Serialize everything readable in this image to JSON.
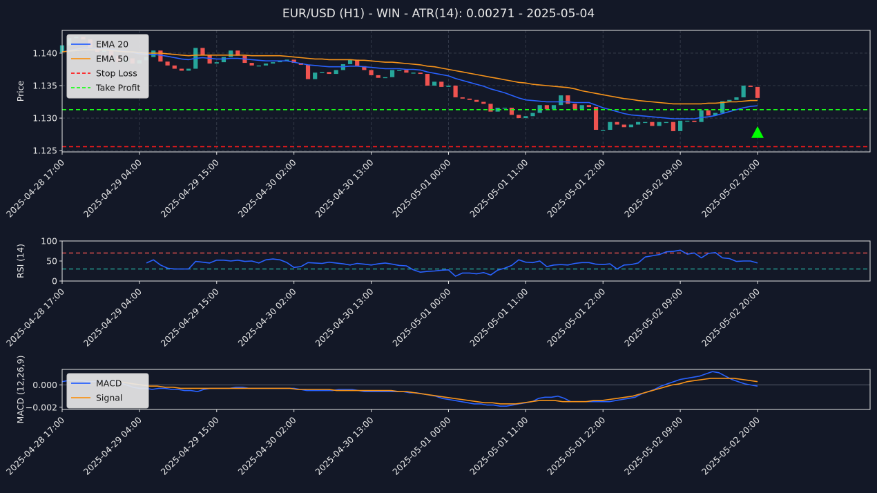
{
  "title": "EUR/USD (H1) - WIN - ATR(14): 0.00271 - 2025-05-04",
  "colors": {
    "background": "#131827",
    "axes_border": "#e6e6e6",
    "text": "#e6e6e6",
    "grid": "#3b4150",
    "bull": "#26a69a",
    "bear": "#ef5350",
    "ema20": "#2962ff",
    "ema50": "#f7931a",
    "stop_loss": "#ff1a1a",
    "take_profit": "#1aff1a",
    "rsi_line": "#2962ff",
    "rsi_upper": "#ef5350",
    "rsi_lower": "#26a69a",
    "macd": "#2962ff",
    "signal": "#f7931a",
    "marker": "#00ff00"
  },
  "x_ticks": [
    {
      "label": "2025-04-28 17:00",
      "i": 0
    },
    {
      "label": "2025-04-29 04:00",
      "i": 11
    },
    {
      "label": "2025-04-29 15:00",
      "i": 22
    },
    {
      "label": "2025-04-30 02:00",
      "i": 33
    },
    {
      "label": "2025-04-30 13:00",
      "i": 44
    },
    {
      "label": "2025-05-01 00:00",
      "i": 55
    },
    {
      "label": "2025-05-01 11:00",
      "i": 66
    },
    {
      "label": "2025-05-01 22:00",
      "i": 77
    },
    {
      "label": "2025-05-02 09:00",
      "i": 88
    },
    {
      "label": "2025-05-02 20:00",
      "i": 99
    }
  ],
  "chart_data": [
    {
      "type": "candlestick",
      "ylabel": "Price",
      "ylim": [
        1.1248,
        1.1435
      ],
      "y_ticks": [
        "1.125",
        "1.130",
        "1.135",
        "1.140"
      ],
      "x_range_index": [
        0,
        115
      ],
      "candles": [
        [
          1.1401,
          1.1412
        ],
        [
          1.1412,
          1.1423
        ],
        [
          1.1423,
          1.1425
        ],
        [
          1.1425,
          1.1421
        ],
        [
          1.1421,
          1.1409
        ],
        [
          1.1409,
          1.1402
        ],
        [
          1.1402,
          1.1405
        ],
        [
          1.1405,
          1.1396
        ],
        [
          1.1396,
          1.1386
        ],
        [
          1.1386,
          1.1392
        ],
        [
          1.1392,
          1.1384
        ],
        [
          1.1384,
          1.1389
        ],
        [
          1.1389,
          1.1394
        ],
        [
          1.1394,
          1.1404
        ],
        [
          1.1404,
          1.1387
        ],
        [
          1.1387,
          1.1381
        ],
        [
          1.1381,
          1.1376
        ],
        [
          1.1376,
          1.1373
        ],
        [
          1.1373,
          1.1376
        ],
        [
          1.1376,
          1.1408
        ],
        [
          1.1408,
          1.1397
        ],
        [
          1.1397,
          1.1384
        ],
        [
          1.1384,
          1.1386
        ],
        [
          1.1386,
          1.1394
        ],
        [
          1.1394,
          1.1404
        ],
        [
          1.1404,
          1.1396
        ],
        [
          1.1396,
          1.1385
        ],
        [
          1.1385,
          1.1381
        ],
        [
          1.1381,
          1.1381
        ],
        [
          1.1381,
          1.1384
        ],
        [
          1.1384,
          1.1386
        ],
        [
          1.1386,
          1.1388
        ],
        [
          1.1388,
          1.139
        ],
        [
          1.139,
          1.1385
        ],
        [
          1.1385,
          1.1382
        ],
        [
          1.1382,
          1.136
        ],
        [
          1.136,
          1.137
        ],
        [
          1.137,
          1.1371
        ],
        [
          1.1371,
          1.1368
        ],
        [
          1.1368,
          1.1374
        ],
        [
          1.1374,
          1.1383
        ],
        [
          1.1383,
          1.139
        ],
        [
          1.139,
          1.138
        ],
        [
          1.138,
          1.1374
        ],
        [
          1.1374,
          1.1366
        ],
        [
          1.1366,
          1.1362
        ],
        [
          1.1362,
          1.1363
        ],
        [
          1.1363,
          1.1374
        ],
        [
          1.1374,
          1.1374
        ],
        [
          1.1374,
          1.137
        ],
        [
          1.137,
          1.137
        ],
        [
          1.137,
          1.1368
        ],
        [
          1.1368,
          1.135
        ],
        [
          1.135,
          1.1356
        ],
        [
          1.1356,
          1.1348
        ],
        [
          1.1348,
          1.135
        ],
        [
          1.135,
          1.1332
        ],
        [
          1.1332,
          1.133
        ],
        [
          1.133,
          1.1328
        ],
        [
          1.1328,
          1.1325
        ],
        [
          1.1325,
          1.1322
        ],
        [
          1.1322,
          1.131
        ],
        [
          1.131,
          1.1316
        ],
        [
          1.1316,
          1.1316
        ],
        [
          1.1316,
          1.1305
        ],
        [
          1.1305,
          1.13
        ],
        [
          1.13,
          1.1303
        ],
        [
          1.1303,
          1.1308
        ],
        [
          1.1308,
          1.132
        ],
        [
          1.132,
          1.1314
        ],
        [
          1.1314,
          1.132
        ],
        [
          1.132,
          1.1335
        ],
        [
          1.1335,
          1.1322
        ],
        [
          1.1322,
          1.1314
        ],
        [
          1.1314,
          1.132
        ],
        [
          1.132,
          1.1317
        ],
        [
          1.1317,
          1.1282
        ],
        [
          1.1282,
          1.1282
        ],
        [
          1.1282,
          1.1294
        ],
        [
          1.1294,
          1.129
        ],
        [
          1.129,
          1.1286
        ],
        [
          1.1286,
          1.129
        ],
        [
          1.129,
          1.1294
        ],
        [
          1.1294,
          1.1294
        ],
        [
          1.1294,
          1.1288
        ],
        [
          1.1288,
          1.1294
        ],
        [
          1.1294,
          1.1294
        ],
        [
          1.1294,
          1.128
        ],
        [
          1.128,
          1.1296
        ],
        [
          1.1296,
          1.1296
        ],
        [
          1.1296,
          1.1294
        ],
        [
          1.1294,
          1.1312
        ],
        [
          1.1312,
          1.1304
        ],
        [
          1.1304,
          1.1308
        ],
        [
          1.1308,
          1.1326
        ],
        [
          1.1326,
          1.1328
        ],
        [
          1.1328,
          1.1332
        ],
        [
          1.1332,
          1.135
        ],
        [
          1.135,
          1.1348
        ],
        [
          1.1348,
          1.1331
        ]
      ],
      "series": [
        {
          "name": "EMA 20",
          "values": [
            1.1402,
            1.1404,
            1.1406,
            1.1408,
            1.1408,
            1.1407,
            1.1407,
            1.1406,
            1.1404,
            1.1403,
            1.1401,
            1.1399,
            1.1398,
            1.1398,
            1.1397,
            1.1395,
            1.1393,
            1.1391,
            1.139,
            1.1392,
            1.1393,
            1.1392,
            1.1391,
            1.1391,
            1.1392,
            1.1392,
            1.1391,
            1.139,
            1.1389,
            1.1388,
            1.1388,
            1.1388,
            1.1388,
            1.1386,
            1.1384,
            1.1382,
            1.1381,
            1.138,
            1.1379,
            1.1379,
            1.1379,
            1.138,
            1.138,
            1.1379,
            1.1378,
            1.1377,
            1.1376,
            1.1376,
            1.1376,
            1.1375,
            1.1375,
            1.1374,
            1.1371,
            1.1369,
            1.1367,
            1.1365,
            1.1361,
            1.1358,
            1.1355,
            1.1352,
            1.1349,
            1.1345,
            1.1342,
            1.1339,
            1.1335,
            1.1331,
            1.1328,
            1.1327,
            1.1326,
            1.1325,
            1.1325,
            1.1325,
            1.1325,
            1.1324,
            1.1324,
            1.1324,
            1.132,
            1.1316,
            1.1313,
            1.131,
            1.1307,
            1.1305,
            1.1304,
            1.1303,
            1.1302,
            1.1301,
            1.13,
            1.1299,
            1.1299,
            1.1299,
            1.1299,
            1.1301,
            1.1302,
            1.1304,
            1.1307,
            1.131,
            1.1313,
            1.1316,
            1.1318,
            1.1319
          ],
          "extra": [
            1.1322,
            1.1325,
            1.1327,
            1.1328,
            1.1328,
            1.1326,
            1.1325,
            1.1323,
            1.1322,
            1.132
          ]
        },
        {
          "name": "EMA 50",
          "values": [
            1.1402,
            1.1403,
            1.1404,
            1.1405,
            1.1405,
            1.1405,
            1.1405,
            1.1404,
            1.1403,
            1.1402,
            1.1402,
            1.1401,
            1.14,
            1.14,
            1.14,
            1.1399,
            1.1398,
            1.1397,
            1.1396,
            1.1397,
            1.1397,
            1.1397,
            1.1397,
            1.1397,
            1.1397,
            1.1397,
            1.1397,
            1.1396,
            1.1396,
            1.1396,
            1.1396,
            1.1396,
            1.1395,
            1.1394,
            1.1393,
            1.1392,
            1.1391,
            1.1391,
            1.139,
            1.139,
            1.139,
            1.139,
            1.1389,
            1.1389,
            1.1388,
            1.1387,
            1.1386,
            1.1386,
            1.1385,
            1.1384,
            1.1383,
            1.1382,
            1.138,
            1.1379,
            1.1377,
            1.1375,
            1.1373,
            1.1371,
            1.1369,
            1.1367,
            1.1365,
            1.1363,
            1.1361,
            1.1359,
            1.1357,
            1.1355,
            1.1354,
            1.1352,
            1.1351,
            1.135,
            1.1349,
            1.1348,
            1.1347,
            1.1345,
            1.1342,
            1.134,
            1.1338,
            1.1336,
            1.1334,
            1.1332,
            1.133,
            1.1329,
            1.1327,
            1.1326,
            1.1325,
            1.1324,
            1.1323,
            1.1322,
            1.1322,
            1.1322,
            1.1322,
            1.1322,
            1.1323,
            1.1323,
            1.1324,
            1.1325,
            1.1325,
            1.1326,
            1.1327,
            1.1327
          ],
          "extra": [
            1.1328,
            1.1328,
            1.1328,
            1.1328,
            1.1327,
            1.1326,
            1.1325,
            1.1324,
            1.1323,
            1.1323
          ]
        }
      ],
      "hlines": [
        {
          "name": "Stop Loss",
          "value": 1.1256
        },
        {
          "name": "Take Profit",
          "value": 1.1313
        }
      ],
      "legend": [
        "EMA 20",
        "EMA 50",
        "Stop Loss",
        "Take Profit"
      ],
      "legend_placement": "top-left",
      "marker": {
        "type": "triangle-up",
        "i": 99,
        "value": 1.1278
      },
      "grid": true
    },
    {
      "type": "line",
      "ylabel": "RSI (14)",
      "ylim": [
        0,
        100
      ],
      "y_ticks": [
        "0",
        "50",
        "100"
      ],
      "hlines": [
        {
          "value": 70
        },
        {
          "value": 30
        }
      ],
      "start_index": 12,
      "values": [
        45,
        53,
        40,
        32,
        30,
        30,
        30,
        49,
        47,
        45,
        52,
        52,
        50,
        52,
        49,
        50,
        45,
        53,
        55,
        53,
        46,
        34,
        36,
        46,
        45,
        44,
        47,
        45,
        43,
        40,
        44,
        42,
        40,
        43,
        45,
        42,
        39,
        38,
        28,
        22,
        24,
        25,
        27,
        28,
        12,
        20,
        20,
        18,
        21,
        15,
        27,
        32,
        39,
        53,
        47,
        46,
        50,
        36,
        40,
        41,
        40,
        44,
        46,
        46,
        42,
        41,
        43,
        30,
        40,
        41,
        45,
        60,
        63,
        66,
        73,
        74,
        77,
        67,
        70,
        58,
        69,
        71,
        58,
        56,
        49,
        50,
        50,
        45
      ],
      "grid": false
    },
    {
      "type": "line",
      "ylabel": "MACD (12,26,9)",
      "ylim": [
        -0.0022,
        0.0014
      ],
      "y_ticks": [
        "−0.002",
        "0.000"
      ],
      "zero_line": true,
      "series": [
        {
          "name": "MACD",
          "start_index": 0,
          "values": [
            0.0003,
            0.0004,
            0.0004,
            0.0004,
            0.0003,
            0.0003,
            0.0003,
            0.0004,
            0.0004,
            0.0002,
            0.0,
            -0.0002,
            -0.0003,
            -0.0003,
            -0.0004,
            -0.0003,
            -0.0003,
            -0.0004,
            -0.0004,
            -0.0005,
            -0.0005,
            -0.0006,
            -0.0004,
            -0.0003,
            -0.0003,
            -0.0003,
            -0.0003,
            -0.0002,
            -0.0002,
            -0.0003,
            -0.0003,
            -0.0003,
            -0.0003,
            -0.0003,
            -0.0003,
            -0.0003,
            -0.0003,
            -0.0004,
            -0.0005,
            -0.0005,
            -0.0005,
            -0.0005,
            -0.0005,
            -0.0004,
            -0.0004,
            -0.0004,
            -0.0005,
            -0.0006,
            -0.0006,
            -0.0006,
            -0.0006,
            -0.0006,
            -0.0006,
            -0.0006,
            -0.0007,
            -0.0007,
            -0.0008,
            -0.0009,
            -0.001,
            -0.0012,
            -0.0013,
            -0.0014,
            -0.0015,
            -0.0016,
            -0.0017,
            -0.0017,
            -0.0018,
            -0.0018,
            -0.0019,
            -0.0019,
            -0.0018,
            -0.0017,
            -0.0016,
            -0.0015,
            -0.0012,
            -0.0011,
            -0.0011,
            -0.001,
            -0.0012,
            -0.0015,
            -0.0015,
            -0.0015,
            -0.0015,
            -0.0015,
            -0.0015,
            -0.0015,
            -0.0014,
            -0.0013,
            -0.0012,
            -0.0011,
            -0.0008,
            -0.0006,
            -0.0004,
            -0.0001,
            0.0001,
            0.0003,
            0.0005,
            0.0006,
            0.0007,
            0.0008,
            0.001,
            0.0012,
            0.0011,
            0.0008,
            0.0005,
            0.0003,
            0.0001,
            0.0,
            -0.0001
          ],
          "x_end": 99
        },
        {
          "name": "Signal",
          "start_index": 8,
          "values": [
            0.0003,
            0.0002,
            0.0001,
            0.0,
            -0.0001,
            -0.0001,
            -0.0002,
            -0.0002,
            -0.0003,
            -0.0003,
            -0.0003,
            -0.0003,
            -0.0003,
            -0.0003,
            -0.0003,
            -0.0003,
            -0.0003,
            -0.0003,
            -0.0003,
            -0.0003,
            -0.0003,
            -0.0003,
            -0.0003,
            -0.0004,
            -0.0004,
            -0.0004,
            -0.0004,
            -0.0004,
            -0.0005,
            -0.0005,
            -0.0005,
            -0.0005,
            -0.0005,
            -0.0005,
            -0.0005,
            -0.0005,
            -0.0006,
            -0.0006,
            -0.0007,
            -0.0008,
            -0.0009,
            -0.001,
            -0.0011,
            -0.0012,
            -0.0013,
            -0.0014,
            -0.0015,
            -0.0016,
            -0.0016,
            -0.0017,
            -0.0017,
            -0.0017,
            -0.0016,
            -0.0015,
            -0.0014,
            -0.0014,
            -0.0014,
            -0.0015,
            -0.0015,
            -0.0015,
            -0.0015,
            -0.0014,
            -0.0014,
            -0.0013,
            -0.0012,
            -0.0011,
            -0.001,
            -0.0008,
            -0.0006,
            -0.0004,
            -0.0002,
            0.0,
            0.0001,
            0.0003,
            0.0004,
            0.0005,
            0.0006,
            0.0006,
            0.0006,
            0.0006,
            0.0005,
            0.0004,
            0.0003
          ],
          "x_end": 99
        }
      ],
      "legend": [
        "MACD",
        "Signal"
      ],
      "legend_placement": "top-left",
      "grid": false
    }
  ]
}
